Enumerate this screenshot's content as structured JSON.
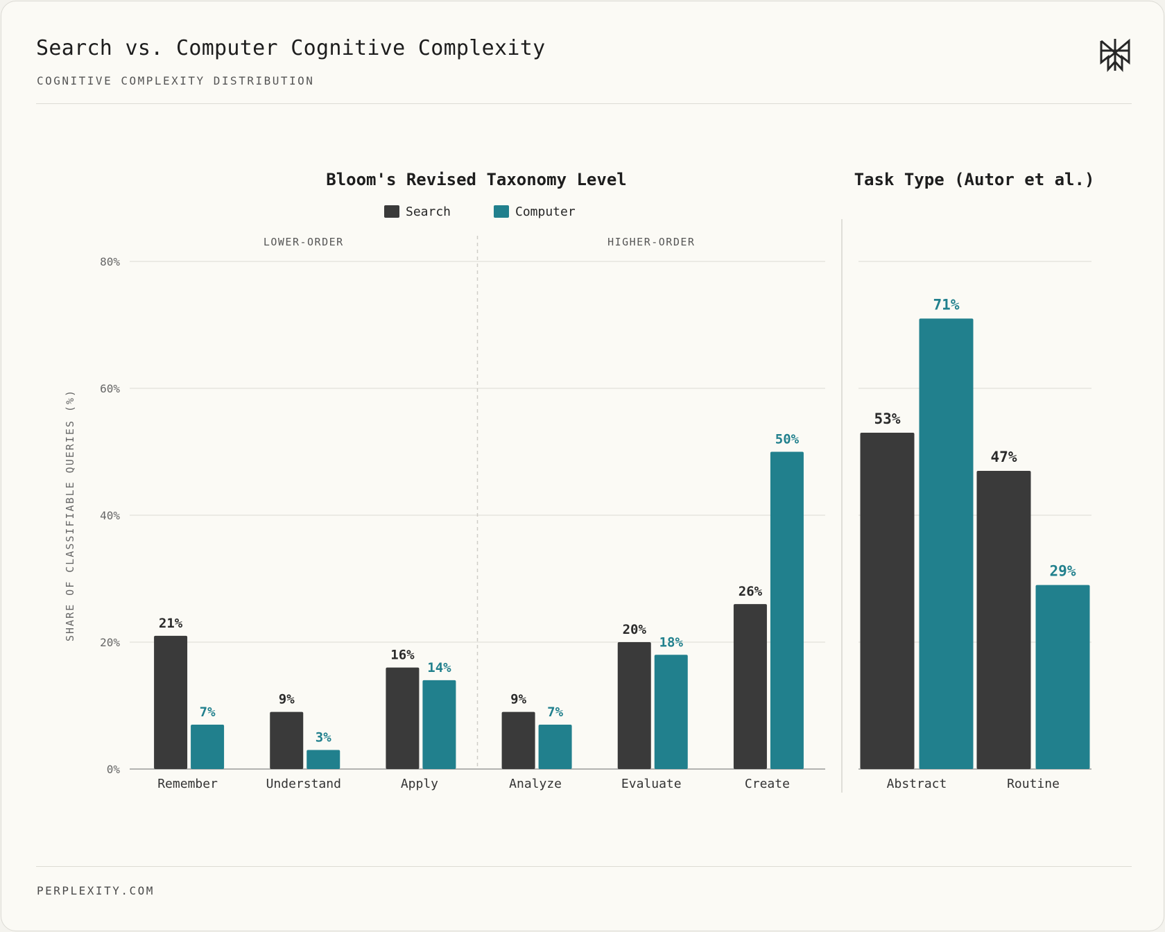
{
  "header": {
    "title": "Search vs. Computer Cognitive Complexity",
    "subtitle": "COGNITIVE COMPLEXITY DISTRIBUTION",
    "logo_icon": "perplexity-logo-icon"
  },
  "footer": {
    "text": "PERPLEXITY.COM"
  },
  "colors": {
    "search": "#3a3a3a",
    "computer": "#21808d",
    "grid": "#e6e4de",
    "axis": "#9a9a9a"
  },
  "chart_data": [
    {
      "type": "bar",
      "title": "Bloom's Revised Taxonomy Level",
      "ylabel": "SHARE OF CLASSIFIABLE QUERIES (%)",
      "ylim": [
        0,
        80
      ],
      "yticks": [
        "0%",
        "20%",
        "40%",
        "60%",
        "80%"
      ],
      "categories": [
        "Remember",
        "Understand",
        "Apply",
        "Analyze",
        "Evaluate",
        "Create"
      ],
      "groups": [
        {
          "label": "LOWER-ORDER",
          "categories": [
            "Remember",
            "Understand",
            "Apply"
          ]
        },
        {
          "label": "HIGHER-ORDER",
          "categories": [
            "Analyze",
            "Evaluate",
            "Create"
          ]
        }
      ],
      "legend": "top-center",
      "grid": true,
      "series": [
        {
          "name": "Search",
          "values": [
            21,
            9,
            16,
            9,
            20,
            26
          ],
          "labels": [
            "21%",
            "9%",
            "16%",
            "9%",
            "20%",
            "26%"
          ]
        },
        {
          "name": "Computer",
          "values": [
            7,
            3,
            14,
            7,
            18,
            50
          ],
          "labels": [
            "7%",
            "3%",
            "14%",
            "7%",
            "18%",
            "50%"
          ]
        }
      ]
    },
    {
      "type": "bar",
      "title": "Task Type (Autor et al.)",
      "ylim": [
        0,
        80
      ],
      "categories": [
        "Abstract",
        "Routine"
      ],
      "grid": true,
      "series": [
        {
          "name": "Search",
          "values": [
            53,
            47
          ],
          "labels": [
            "53%",
            "47%"
          ]
        },
        {
          "name": "Computer",
          "values": [
            71,
            29
          ],
          "labels": [
            "71%",
            "29%"
          ]
        }
      ]
    }
  ]
}
